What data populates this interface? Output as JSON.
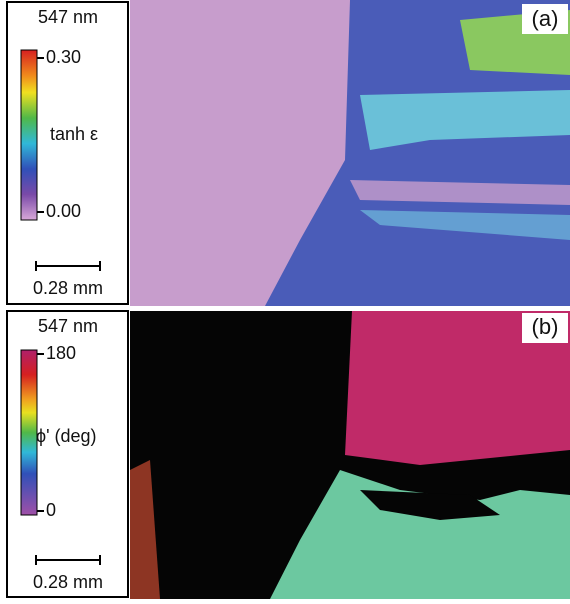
{
  "panels": [
    {
      "label": "(a)",
      "wavelength": "547 nm",
      "colorbar_max": "0.30",
      "colorbar_min": "0.00",
      "colorbar_label": "tanh ε",
      "scale_bar": "0.28 mm"
    },
    {
      "label": "(b)",
      "wavelength": "547 nm",
      "colorbar_max": "180",
      "colorbar_min": "0",
      "colorbar_label": "ϕ' (deg)",
      "scale_bar": "0.28 mm"
    }
  ]
}
